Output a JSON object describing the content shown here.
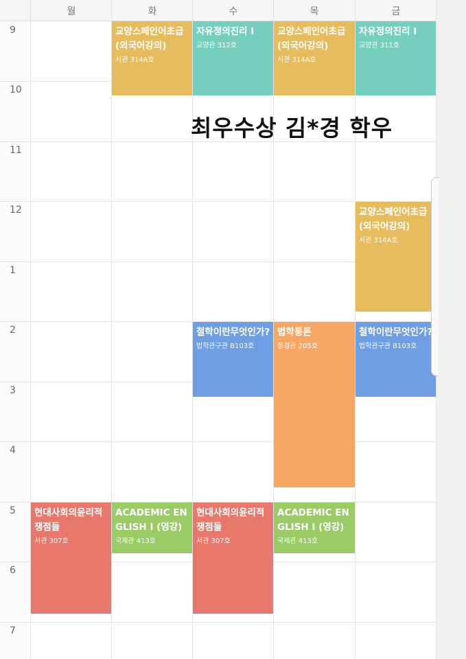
{
  "days": [
    "월",
    "화",
    "수",
    "목",
    "금"
  ],
  "hours": [
    "9",
    "10",
    "11",
    "12",
    "1",
    "2",
    "3",
    "4",
    "5",
    "6",
    "7"
  ],
  "overlay_text": "최우수상 김*경 학우",
  "courses": [
    {
      "name": "교양스페인어초급(외국어강의)",
      "room": "서관 314A호",
      "color": "#e7bc5e"
    },
    {
      "name": "자유정의진리 I",
      "room": "교양관 312호",
      "color": "#76cfbe"
    },
    {
      "name": "교양스페인어초급(외국어강의)",
      "room": "서관 314A호",
      "color": "#e7bc5e"
    },
    {
      "name": "자유정의진리 I",
      "room": "교양관 311호",
      "color": "#76cfbe"
    },
    {
      "name": "교양스페인어초급(외국어강의)",
      "room": "서관 314A호",
      "color": "#e7bc5e"
    },
    {
      "name": "철학이란무엇인가?",
      "room": "법학관구관 B103호",
      "color": "#6f9fe2"
    },
    {
      "name": "법학통론",
      "room": "정경관 205호",
      "color": "#f7a765"
    },
    {
      "name": "철학이란무엇인가?",
      "room": "법학관구관 B103호",
      "color": "#6f9fe2"
    },
    {
      "name": "현대사회의윤리적쟁점들",
      "room": "서관 307호",
      "color": "#e7786b"
    },
    {
      "name": "ACADEMIC ENGLISH I (영강)",
      "room": "국제관 413호",
      "color": "#9acb67"
    },
    {
      "name": "현대사회의윤리적쟁점들",
      "room": "서관 307호",
      "color": "#e7786b"
    },
    {
      "name": "ACADEMIC ENGLISH I (영강)",
      "room": "국제관 413호",
      "color": "#9acb67"
    }
  ]
}
